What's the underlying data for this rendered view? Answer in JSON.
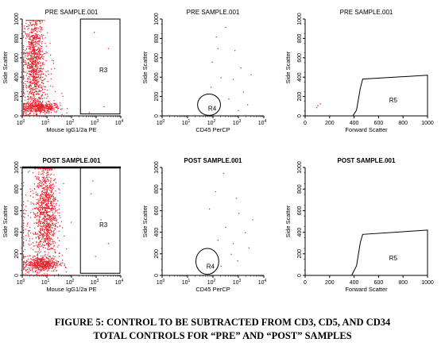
{
  "caption": {
    "line1": "FIGURE 5:  CONTROL TO BE SUBTRACTED FROM CD3, CD5, AND CD34",
    "line2": "TOTAL CONTROLS FOR  “PRE” AND “POST” SAMPLES"
  },
  "colors": {
    "dot": "#e8202a",
    "axis": "#000000",
    "dot_sparse": "#2a8a3a"
  },
  "chart_data": [
    {
      "type": "scatter",
      "id": "p1",
      "row": "pre",
      "title": "PRE SAMPLE.001",
      "xlabel": "Mouse IgG1/2a PE",
      "ylabel": "Side Scatter",
      "xscale": "log",
      "xlim": [
        1,
        10000
      ],
      "ylim": [
        0,
        1000
      ],
      "xticks": [
        "10^0",
        "10^1",
        "10^2",
        "10^3",
        "10^4"
      ],
      "yticks": [
        "0",
        "200",
        "400",
        "600",
        "800",
        "1000"
      ],
      "region": {
        "label": "R3",
        "shape": "rectangle",
        "x": [
          230,
          10000
        ],
        "y": [
          20,
          1000
        ]
      },
      "density": "high",
      "clusters": [
        {
          "x": 5,
          "y": 90,
          "sx": 0.4,
          "sy": 28,
          "n": 420
        },
        {
          "x": 3,
          "y": 550,
          "sx": 0.2,
          "sy": 260,
          "n": 900
        },
        {
          "x": 2,
          "y": 300,
          "sx": 0.45,
          "sy": 230,
          "n": 200
        }
      ],
      "sparse_points": [
        [
          800,
          870
        ],
        [
          3000,
          700
        ],
        [
          500,
          40
        ],
        [
          2000,
          100
        ]
      ]
    },
    {
      "type": "scatter",
      "id": "p2",
      "row": "pre",
      "title": "PRE SAMPLE.001",
      "xlabel": "CD45 PerCP",
      "ylabel": "Side Scatter",
      "xscale": "log",
      "xlim": [
        1,
        10000
      ],
      "ylim": [
        0,
        1000
      ],
      "xticks": [
        "10^0",
        "10^1",
        "10^2",
        "10^3",
        "10^4"
      ],
      "yticks": [
        "0",
        "200",
        "400",
        "600",
        "800",
        "1000"
      ],
      "region": {
        "label": "R4",
        "shape": "ellipse",
        "cx": 70,
        "cy": 115,
        "rx_decades": 0.45,
        "ry": 110
      },
      "density": "sparse",
      "sparse_points": [
        [
          300,
          920
        ],
        [
          150,
          700
        ],
        [
          700,
          680
        ],
        [
          90,
          560
        ],
        [
          1200,
          500
        ],
        [
          200,
          400
        ],
        [
          600,
          380
        ],
        [
          80,
          300
        ],
        [
          1500,
          250
        ],
        [
          400,
          180
        ],
        [
          2200,
          120
        ],
        [
          950,
          60
        ],
        [
          130,
          820
        ],
        [
          3000,
          430
        ]
      ]
    },
    {
      "type": "scatter",
      "id": "p3",
      "row": "pre",
      "title": "PRE SAMPLE.001",
      "xlabel": "Forward Scatter",
      "ylabel": "Side Scatter",
      "xscale": "linear",
      "xlim": [
        0,
        1000
      ],
      "ylim": [
        0,
        1000
      ],
      "xticks": [
        "0",
        "200",
        "400",
        "600",
        "800",
        "1000"
      ],
      "yticks": [
        "0",
        "200",
        "400",
        "600",
        "800",
        "1000"
      ],
      "region": {
        "label": "R5",
        "shape": "polygon",
        "points": [
          [
            390,
            0
          ],
          [
            420,
            60
          ],
          [
            450,
            280
          ],
          [
            470,
            380
          ],
          [
            1000,
            420
          ],
          [
            1000,
            0
          ]
        ]
      },
      "density": "sparse",
      "sparse_points": [
        [
          100,
          110
        ],
        [
          120,
          130
        ],
        [
          90,
          90
        ]
      ]
    },
    {
      "type": "scatter",
      "id": "p4",
      "row": "post",
      "title": "POST SAMPLE.001",
      "xlabel": "Mouse IgG1/2a PE",
      "ylabel": "Side Scatter",
      "xscale": "log",
      "xlim": [
        1,
        10000
      ],
      "ylim": [
        0,
        1000
      ],
      "xticks": [
        "10^0",
        "10^1",
        "10^2",
        "10^3",
        "10^4"
      ],
      "yticks": [
        "0",
        "200",
        "400",
        "600",
        "800",
        "1000"
      ],
      "region": {
        "label": "R3",
        "shape": "rectangle",
        "x": [
          230,
          10000
        ],
        "y": [
          20,
          1000
        ]
      },
      "density": "high",
      "clusters": [
        {
          "x": 6,
          "y": 110,
          "sx": 0.35,
          "sy": 35,
          "n": 450
        },
        {
          "x": 9,
          "y": 600,
          "sx": 0.22,
          "sy": 230,
          "n": 900
        },
        {
          "x": 3,
          "y": 350,
          "sx": 0.5,
          "sy": 240,
          "n": 220
        }
      ],
      "sparse_points": [
        [
          600,
          760
        ],
        [
          1500,
          520
        ],
        [
          3000,
          300
        ],
        [
          900,
          180
        ],
        [
          700,
          880
        ]
      ]
    },
    {
      "type": "scatter",
      "id": "p5",
      "row": "post",
      "title": "POST SAMPLE.001",
      "xlabel": "CD45 PerCP",
      "ylabel": "Side Scatter",
      "xscale": "log",
      "xlim": [
        1,
        10000
      ],
      "ylim": [
        0,
        1000
      ],
      "xticks": [
        "10^0",
        "10^1",
        "10^2",
        "10^3",
        "10^4"
      ],
      "yticks": [
        "0",
        "200",
        "400",
        "600",
        "800",
        "1000"
      ],
      "region": {
        "label": "R4",
        "shape": "ellipse",
        "cx": 60,
        "cy": 130,
        "rx_decades": 0.45,
        "ry": 120
      },
      "density": "sparse",
      "sparse_points": [
        [
          250,
          950
        ],
        [
          120,
          780
        ],
        [
          800,
          720
        ],
        [
          70,
          620
        ],
        [
          1000,
          580
        ],
        [
          300,
          450
        ],
        [
          1800,
          400
        ],
        [
          150,
          330
        ],
        [
          2500,
          260
        ],
        [
          500,
          200
        ],
        [
          900,
          140
        ],
        [
          200,
          90
        ],
        [
          3500,
          520
        ],
        [
          600,
          300
        ]
      ]
    },
    {
      "type": "scatter",
      "id": "p6",
      "row": "post",
      "title": "POST SAMPLE.001",
      "xlabel": "Forward Scatter",
      "ylabel": "Side Scatter",
      "xscale": "linear",
      "xlim": [
        0,
        1000
      ],
      "ylim": [
        0,
        1000
      ],
      "xticks": [
        "0",
        "200",
        "400",
        "600",
        "800",
        "1000"
      ],
      "yticks": [
        "0",
        "200",
        "400",
        "600",
        "800",
        "1000"
      ],
      "region": {
        "label": "R5",
        "shape": "polygon",
        "points": [
          [
            380,
            0
          ],
          [
            420,
            90
          ],
          [
            450,
            300
          ],
          [
            470,
            380
          ],
          [
            1000,
            420
          ],
          [
            1000,
            0
          ]
        ]
      },
      "density": "sparse",
      "sparse_points": []
    }
  ]
}
